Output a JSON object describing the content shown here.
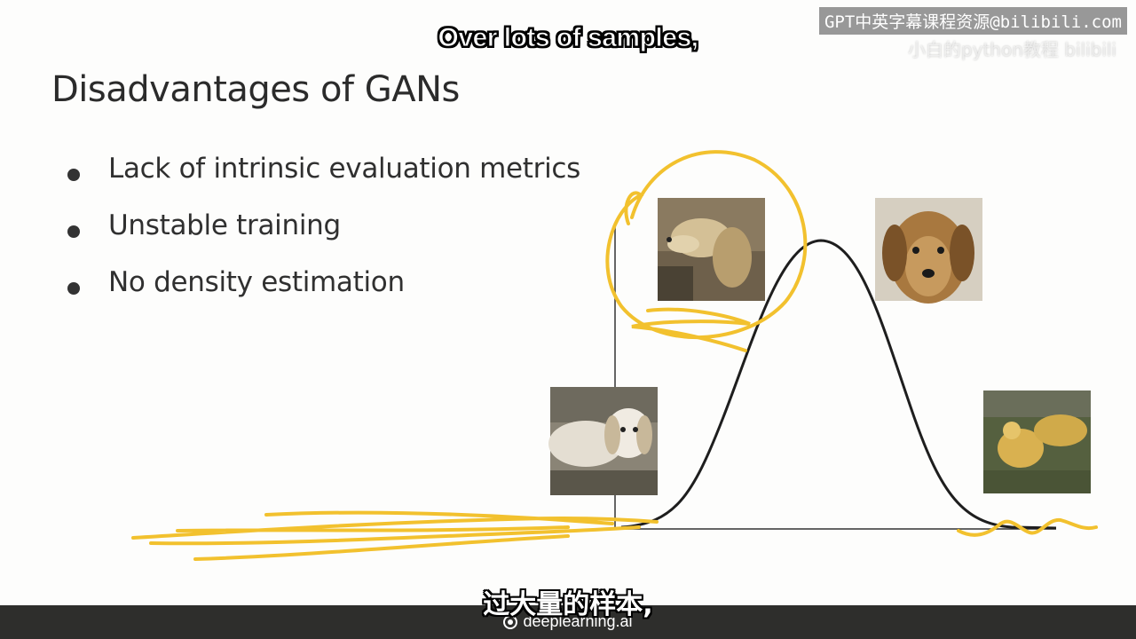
{
  "slide": {
    "title": "Disadvantages of GANs",
    "bullets": [
      "Lack of intrinsic evaluation metrics",
      "Unstable training",
      "No density estimation"
    ]
  },
  "subtitles": {
    "english": "Over lots of samples,",
    "chinese": "过大量的样本,"
  },
  "watermark": {
    "text": "GPT中英字幕课程资源@bilibili.com",
    "secondary": "小白的python教程 bilibili"
  },
  "footer": {
    "brand": "deeplearning.ai"
  },
  "figure": {
    "photos": [
      {
        "name": "golden-retriever-profile-photo",
        "colors": [
          "#7a6a52",
          "#c9b48a",
          "#4a4234"
        ]
      },
      {
        "name": "golden-retriever-front-photo",
        "colors": [
          "#d8d2c4",
          "#a87a42",
          "#6f4a26"
        ]
      },
      {
        "name": "dog-lying-on-couch-photo",
        "colors": [
          "#8a8476",
          "#e6e1d8",
          "#5a564a"
        ]
      },
      {
        "name": "dogs-running-on-grass-photo",
        "colors": [
          "#4e5a3c",
          "#d9b150",
          "#6a6e5a"
        ]
      }
    ],
    "annotation_color": "#f2c12e",
    "curve_color": "#1e1e1e"
  }
}
